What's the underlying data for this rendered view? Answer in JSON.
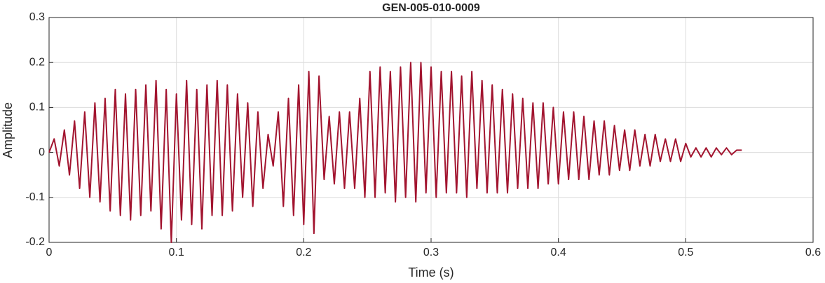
{
  "chart_data": {
    "type": "line",
    "title": "GEN-005-010-0009",
    "x_label": "Time (s)",
    "y_label": "Amplitude",
    "color": "#a2142f",
    "grid": true,
    "xlim": [
      0,
      0.6
    ],
    "xticks": [
      0,
      0.1,
      0.2,
      0.3,
      0.4,
      0.5,
      0.6
    ],
    "ylim": [
      -0.2,
      0.3
    ],
    "yticks": [
      -0.2,
      -0.1,
      0,
      0.1,
      0.2,
      0.3
    ],
    "x": [
      0,
      0.004,
      0.008,
      0.012,
      0.016,
      0.02,
      0.024,
      0.028,
      0.032,
      0.036,
      0.04,
      0.044,
      0.048,
      0.052,
      0.056,
      0.06,
      0.064,
      0.068,
      0.072,
      0.076,
      0.08,
      0.084,
      0.088,
      0.092,
      0.096,
      0.1,
      0.104,
      0.108,
      0.112,
      0.116,
      0.12,
      0.124,
      0.128,
      0.132,
      0.136,
      0.14,
      0.144,
      0.148,
      0.152,
      0.156,
      0.16,
      0.164,
      0.168,
      0.172,
      0.176,
      0.18,
      0.184,
      0.188,
      0.192,
      0.196,
      0.2,
      0.204,
      0.208,
      0.212,
      0.216,
      0.22,
      0.224,
      0.228,
      0.232,
      0.236,
      0.24,
      0.244,
      0.248,
      0.252,
      0.256,
      0.26,
      0.264,
      0.268,
      0.272,
      0.276,
      0.28,
      0.284,
      0.288,
      0.292,
      0.296,
      0.3,
      0.304,
      0.308,
      0.312,
      0.316,
      0.32,
      0.324,
      0.328,
      0.332,
      0.336,
      0.34,
      0.344,
      0.348,
      0.352,
      0.356,
      0.36,
      0.364,
      0.368,
      0.372,
      0.376,
      0.38,
      0.384,
      0.388,
      0.392,
      0.396,
      0.4,
      0.404,
      0.408,
      0.412,
      0.416,
      0.42,
      0.424,
      0.428,
      0.432,
      0.436,
      0.44,
      0.444,
      0.448,
      0.452,
      0.456,
      0.46,
      0.464,
      0.468,
      0.472,
      0.476,
      0.48,
      0.484,
      0.488,
      0.492,
      0.496,
      0.5,
      0.504,
      0.508,
      0.512,
      0.516,
      0.52,
      0.524,
      0.528,
      0.532,
      0.536,
      0.54,
      0.544
    ],
    "values": [
      0,
      0.03,
      -0.03,
      0.05,
      -0.05,
      0.07,
      -0.08,
      0.09,
      -0.1,
      0.11,
      -0.11,
      0.12,
      -0.13,
      0.14,
      -0.14,
      0.13,
      -0.15,
      0.14,
      -0.14,
      0.15,
      -0.13,
      0.16,
      -0.17,
      0.14,
      -0.2,
      0.13,
      -0.15,
      0.16,
      -0.16,
      0.14,
      -0.17,
      0.15,
      -0.14,
      0.16,
      -0.14,
      0.15,
      -0.13,
      0.13,
      -0.1,
      0.11,
      -0.12,
      0.09,
      -0.08,
      0.04,
      -0.03,
      0.09,
      -0.12,
      0.12,
      -0.14,
      0.15,
      -0.16,
      0.18,
      -0.18,
      0.17,
      -0.06,
      0.08,
      -0.07,
      0.09,
      -0.08,
      0.09,
      -0.08,
      0.12,
      -0.1,
      0.18,
      -0.1,
      0.19,
      -0.09,
      0.18,
      -0.11,
      0.19,
      -0.1,
      0.2,
      -0.11,
      0.2,
      -0.09,
      0.19,
      -0.1,
      0.18,
      -0.09,
      0.18,
      -0.09,
      0.17,
      -0.1,
      0.18,
      -0.08,
      0.16,
      -0.09,
      0.15,
      -0.09,
      0.14,
      -0.09,
      0.13,
      -0.08,
      0.12,
      -0.08,
      0.11,
      -0.08,
      0.11,
      -0.07,
      0.1,
      -0.07,
      0.09,
      -0.06,
      0.09,
      -0.06,
      0.08,
      -0.06,
      0.07,
      -0.05,
      0.07,
      -0.05,
      0.06,
      -0.04,
      0.05,
      -0.04,
      0.05,
      -0.03,
      0.04,
      -0.03,
      0.04,
      -0.02,
      0.03,
      -0.02,
      0.03,
      -0.02,
      0.02,
      -0.01,
      0.01,
      -0.01,
      0.01,
      -0.01,
      0.01,
      -0.005,
      0.01,
      -0.005,
      0.005,
      0.005
    ]
  }
}
